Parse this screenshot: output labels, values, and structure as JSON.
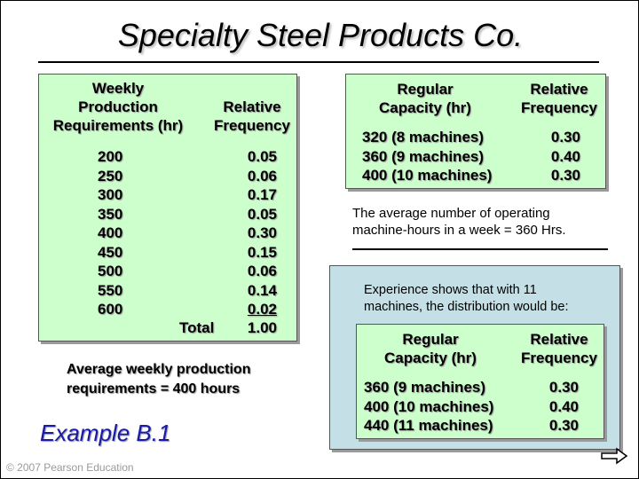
{
  "title": "Specialty Steel Products Co.",
  "left_table": {
    "header_req": "Weekly\nProduction\nRequirements (hr)",
    "header_freq": "Relative\nFrequency",
    "rows": [
      {
        "req": "200",
        "freq": "0.05"
      },
      {
        "req": "250",
        "freq": "0.06"
      },
      {
        "req": "300",
        "freq": "0.17"
      },
      {
        "req": "350",
        "freq": "0.05"
      },
      {
        "req": "400",
        "freq": "0.30"
      },
      {
        "req": "450",
        "freq": "0.15"
      },
      {
        "req": "500",
        "freq": "0.06"
      },
      {
        "req": "550",
        "freq": "0.14"
      },
      {
        "req": "600",
        "freq": "0.02"
      }
    ],
    "total_label": "Total",
    "total_value": "1.00"
  },
  "avg_production": "Average weekly production\nrequirements = 400 hours",
  "right_table": {
    "header_cap": "Regular\nCapacity (hr)",
    "header_freq": "Relative\nFrequency",
    "rows": [
      {
        "cap": "320 (8 machines)",
        "freq": "0.30"
      },
      {
        "cap": "360 (9 machines)",
        "freq": "0.40"
      },
      {
        "cap": "400 (10 machines)",
        "freq": "0.30"
      }
    ]
  },
  "avg_hours_note": "The average number of operating\nmachine-hours in a week = 360 Hrs.",
  "experience": {
    "note": "Experience shows that with 11\nmachines, the distribution would be:",
    "header_cap": "Regular\nCapacity (hr)",
    "header_freq": "Relative\nFrequency",
    "rows": [
      {
        "cap": "360 (9 machines)",
        "freq": "0.30"
      },
      {
        "cap": "400 (10 machines)",
        "freq": "0.40"
      },
      {
        "cap": "440 (11 machines)",
        "freq": "0.30"
      }
    ]
  },
  "example_label": "Example B.1",
  "copyright": "© 2007 Pearson Education",
  "next_arrow_icon": "right-arrow-icon"
}
